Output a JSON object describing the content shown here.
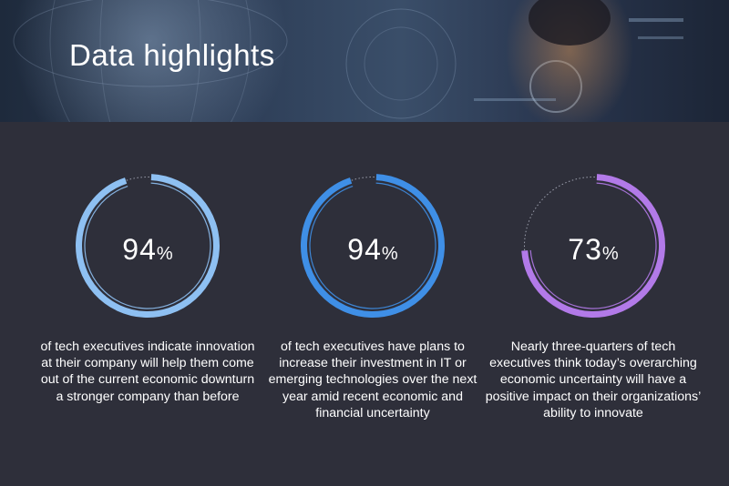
{
  "banner": {
    "title": "Data highlights"
  },
  "chart_data": {
    "type": "donut",
    "items": [
      {
        "value": 94,
        "unit": "%",
        "color": "#8ec0f2",
        "text": "of tech executives indicate innovation at their company will help them come out of the current economic downturn a stronger company than before"
      },
      {
        "value": 94,
        "unit": "%",
        "color": "#3f8fe6",
        "text": "of tech executives have plans to increase their investment in IT or emerging technologies over the next year amid recent economic and financial uncertainty"
      },
      {
        "value": 73,
        "unit": "%",
        "color": "#b27ae8",
        "text": "Nearly three-quarters of tech executives think today’s overarching economic uncertainty will have a positive impact on their organizations’ ability to innovate"
      }
    ]
  }
}
